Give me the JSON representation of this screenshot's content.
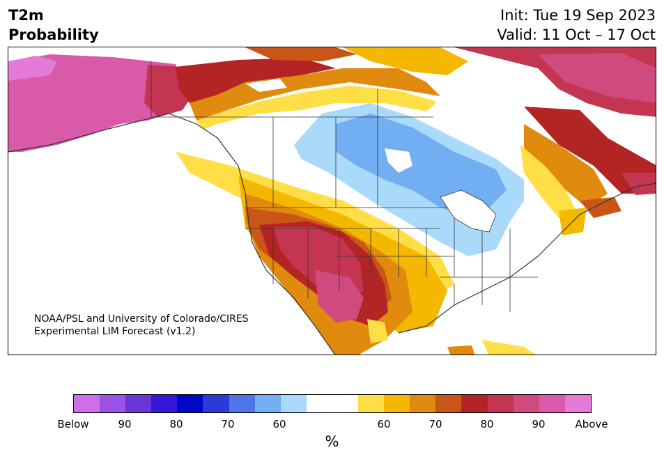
{
  "title": {
    "line1": "T2m",
    "line2": "Probability"
  },
  "init": "Init: Tue 19 Sep 2023",
  "valid": "Valid: 11 Oct – 17 Oct",
  "credit": {
    "line1": "NOAA/PSL and University of Colorado/CIRES",
    "line2": "Experimental LIM Forecast (v1.2)"
  },
  "colorbar": {
    "unit": "%",
    "colors": [
      "#d06ee8",
      "#9b52e6",
      "#6a35d9",
      "#3718d6",
      "#0008c8",
      "#2a3bd9",
      "#4f74e8",
      "#72aef2",
      "#aadaf9",
      "#ffffff",
      "#ffffff",
      "#ffdf45",
      "#f5b800",
      "#e08a0e",
      "#c95516",
      "#b32424",
      "#c43552",
      "#d04a7e",
      "#d95aa8",
      "#e47ad8"
    ],
    "tick_labels": [
      "Below",
      "90",
      "80",
      "70",
      "60",
      "60",
      "70",
      "80",
      "90",
      "Above"
    ]
  },
  "map": {
    "colors": {
      "land_base": "#ffffff",
      "light_blue": "#aadaf9",
      "blue": "#72aef2",
      "yellow": "#ffdf45",
      "gold": "#f5b800",
      "orange": "#e08a0e",
      "dark_orange": "#c95516",
      "red": "#b32424",
      "crimson": "#c43552",
      "rose": "#d04a7e",
      "pink": "#d95aa8",
      "magenta": "#e47ad8",
      "border": "#333333"
    }
  }
}
